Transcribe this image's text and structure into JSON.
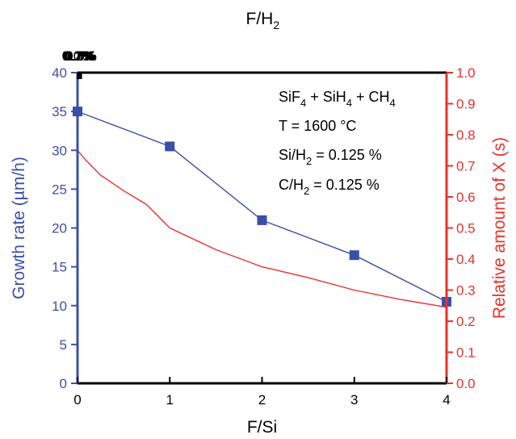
{
  "chart_data": {
    "type": "line",
    "x_bottom": {
      "label": "F/Si",
      "range": [
        0,
        4
      ],
      "ticks": [
        "0",
        "1",
        "2",
        "3",
        "4"
      ]
    },
    "x_top": {
      "label_main": "F/H",
      "label_sub": "2",
      "range": [
        0,
        0.5
      ],
      "ticks": [
        "0.0%",
        "0.1%",
        "0.2%",
        "0.3%",
        "0.4%",
        "0.5%"
      ]
    },
    "y_left": {
      "label": "Growth rate (µm/h)",
      "range": [
        0,
        40
      ],
      "ticks": [
        "0",
        "5",
        "10",
        "15",
        "20",
        "25",
        "30",
        "35",
        "40"
      ],
      "color": "#3b4fa8"
    },
    "y_right": {
      "label": "Relative amount of X (s)",
      "range": [
        0,
        1.0
      ],
      "ticks": [
        "0.0",
        "0.1",
        "0.2",
        "0.3",
        "0.4",
        "0.5",
        "0.6",
        "0.7",
        "0.8",
        "0.9",
        "1.0"
      ],
      "color": "#e8322c"
    },
    "series": [
      {
        "axis": "left",
        "marker": "square",
        "color": "#3b4fa8",
        "points": [
          [
            0,
            35
          ],
          [
            1,
            30.5
          ],
          [
            2,
            21
          ],
          [
            3,
            16.5
          ],
          [
            4,
            10.5
          ]
        ]
      },
      {
        "axis": "right",
        "marker": "none",
        "color": "#e8322c",
        "points": [
          [
            0,
            0.75
          ],
          [
            0.1,
            0.715
          ],
          [
            0.25,
            0.67
          ],
          [
            0.5,
            0.62
          ],
          [
            0.75,
            0.575
          ],
          [
            1,
            0.5
          ],
          [
            1.5,
            0.43
          ],
          [
            2,
            0.375
          ],
          [
            2.5,
            0.34
          ],
          [
            3,
            0.3
          ],
          [
            3.5,
            0.27
          ],
          [
            4,
            0.245
          ]
        ]
      }
    ],
    "annotations": [
      [
        {
          "t": "SiF"
        },
        {
          "t": "4",
          "sub": true
        },
        {
          "t": " + SiH"
        },
        {
          "t": "4",
          "sub": true
        },
        {
          "t": " + CH"
        },
        {
          "t": "4",
          "sub": true
        }
      ],
      [
        {
          "t": "T = 1600 °C"
        }
      ],
      [
        {
          "t": "Si/H"
        },
        {
          "t": "2",
          "sub": true
        },
        {
          "t": " = 0.125 %"
        }
      ],
      [
        {
          "t": "C/H"
        },
        {
          "t": "2",
          "sub": true
        },
        {
          "t": " = 0.125 %"
        }
      ]
    ]
  }
}
